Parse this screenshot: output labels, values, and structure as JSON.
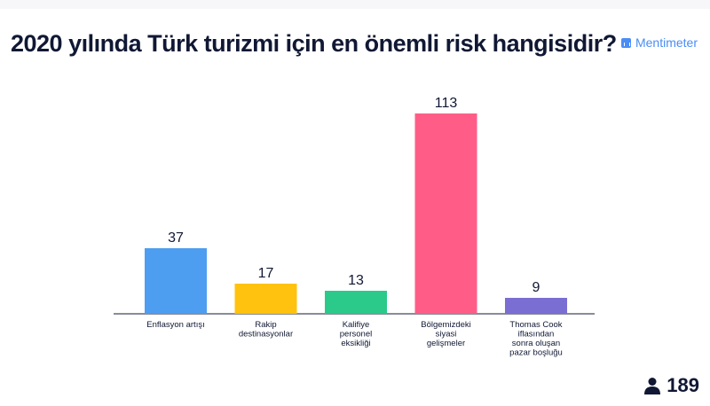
{
  "header": {
    "title": "2020 yılında Türk turizmi için en önemli risk hangisidir?",
    "brand": "Mentimeter"
  },
  "footer": {
    "participants": "189",
    "icon": "person-icon"
  },
  "chart_data": {
    "type": "bar",
    "title": "2020 yılında Türk turizmi için en önemli risk hangisidir?",
    "categories": [
      [
        "Enflasyon artışı"
      ],
      [
        "Rakip",
        "destinasyonlar"
      ],
      [
        "Kalifiye",
        "personel",
        "eksikliği"
      ],
      [
        "Bölgemizdeki",
        "siyasi",
        "gelişmeler"
      ],
      [
        "Thomas Cook",
        "iflasından",
        "sonra oluşan",
        "pazar boşluğu"
      ]
    ],
    "values": [
      37,
      17,
      13,
      113,
      9
    ],
    "colors": [
      "#4d9df1",
      "#ffc20e",
      "#2bc98a",
      "#ff5d87",
      "#7a6ed2"
    ],
    "xlabel": "",
    "ylabel": "",
    "grid": false
  }
}
